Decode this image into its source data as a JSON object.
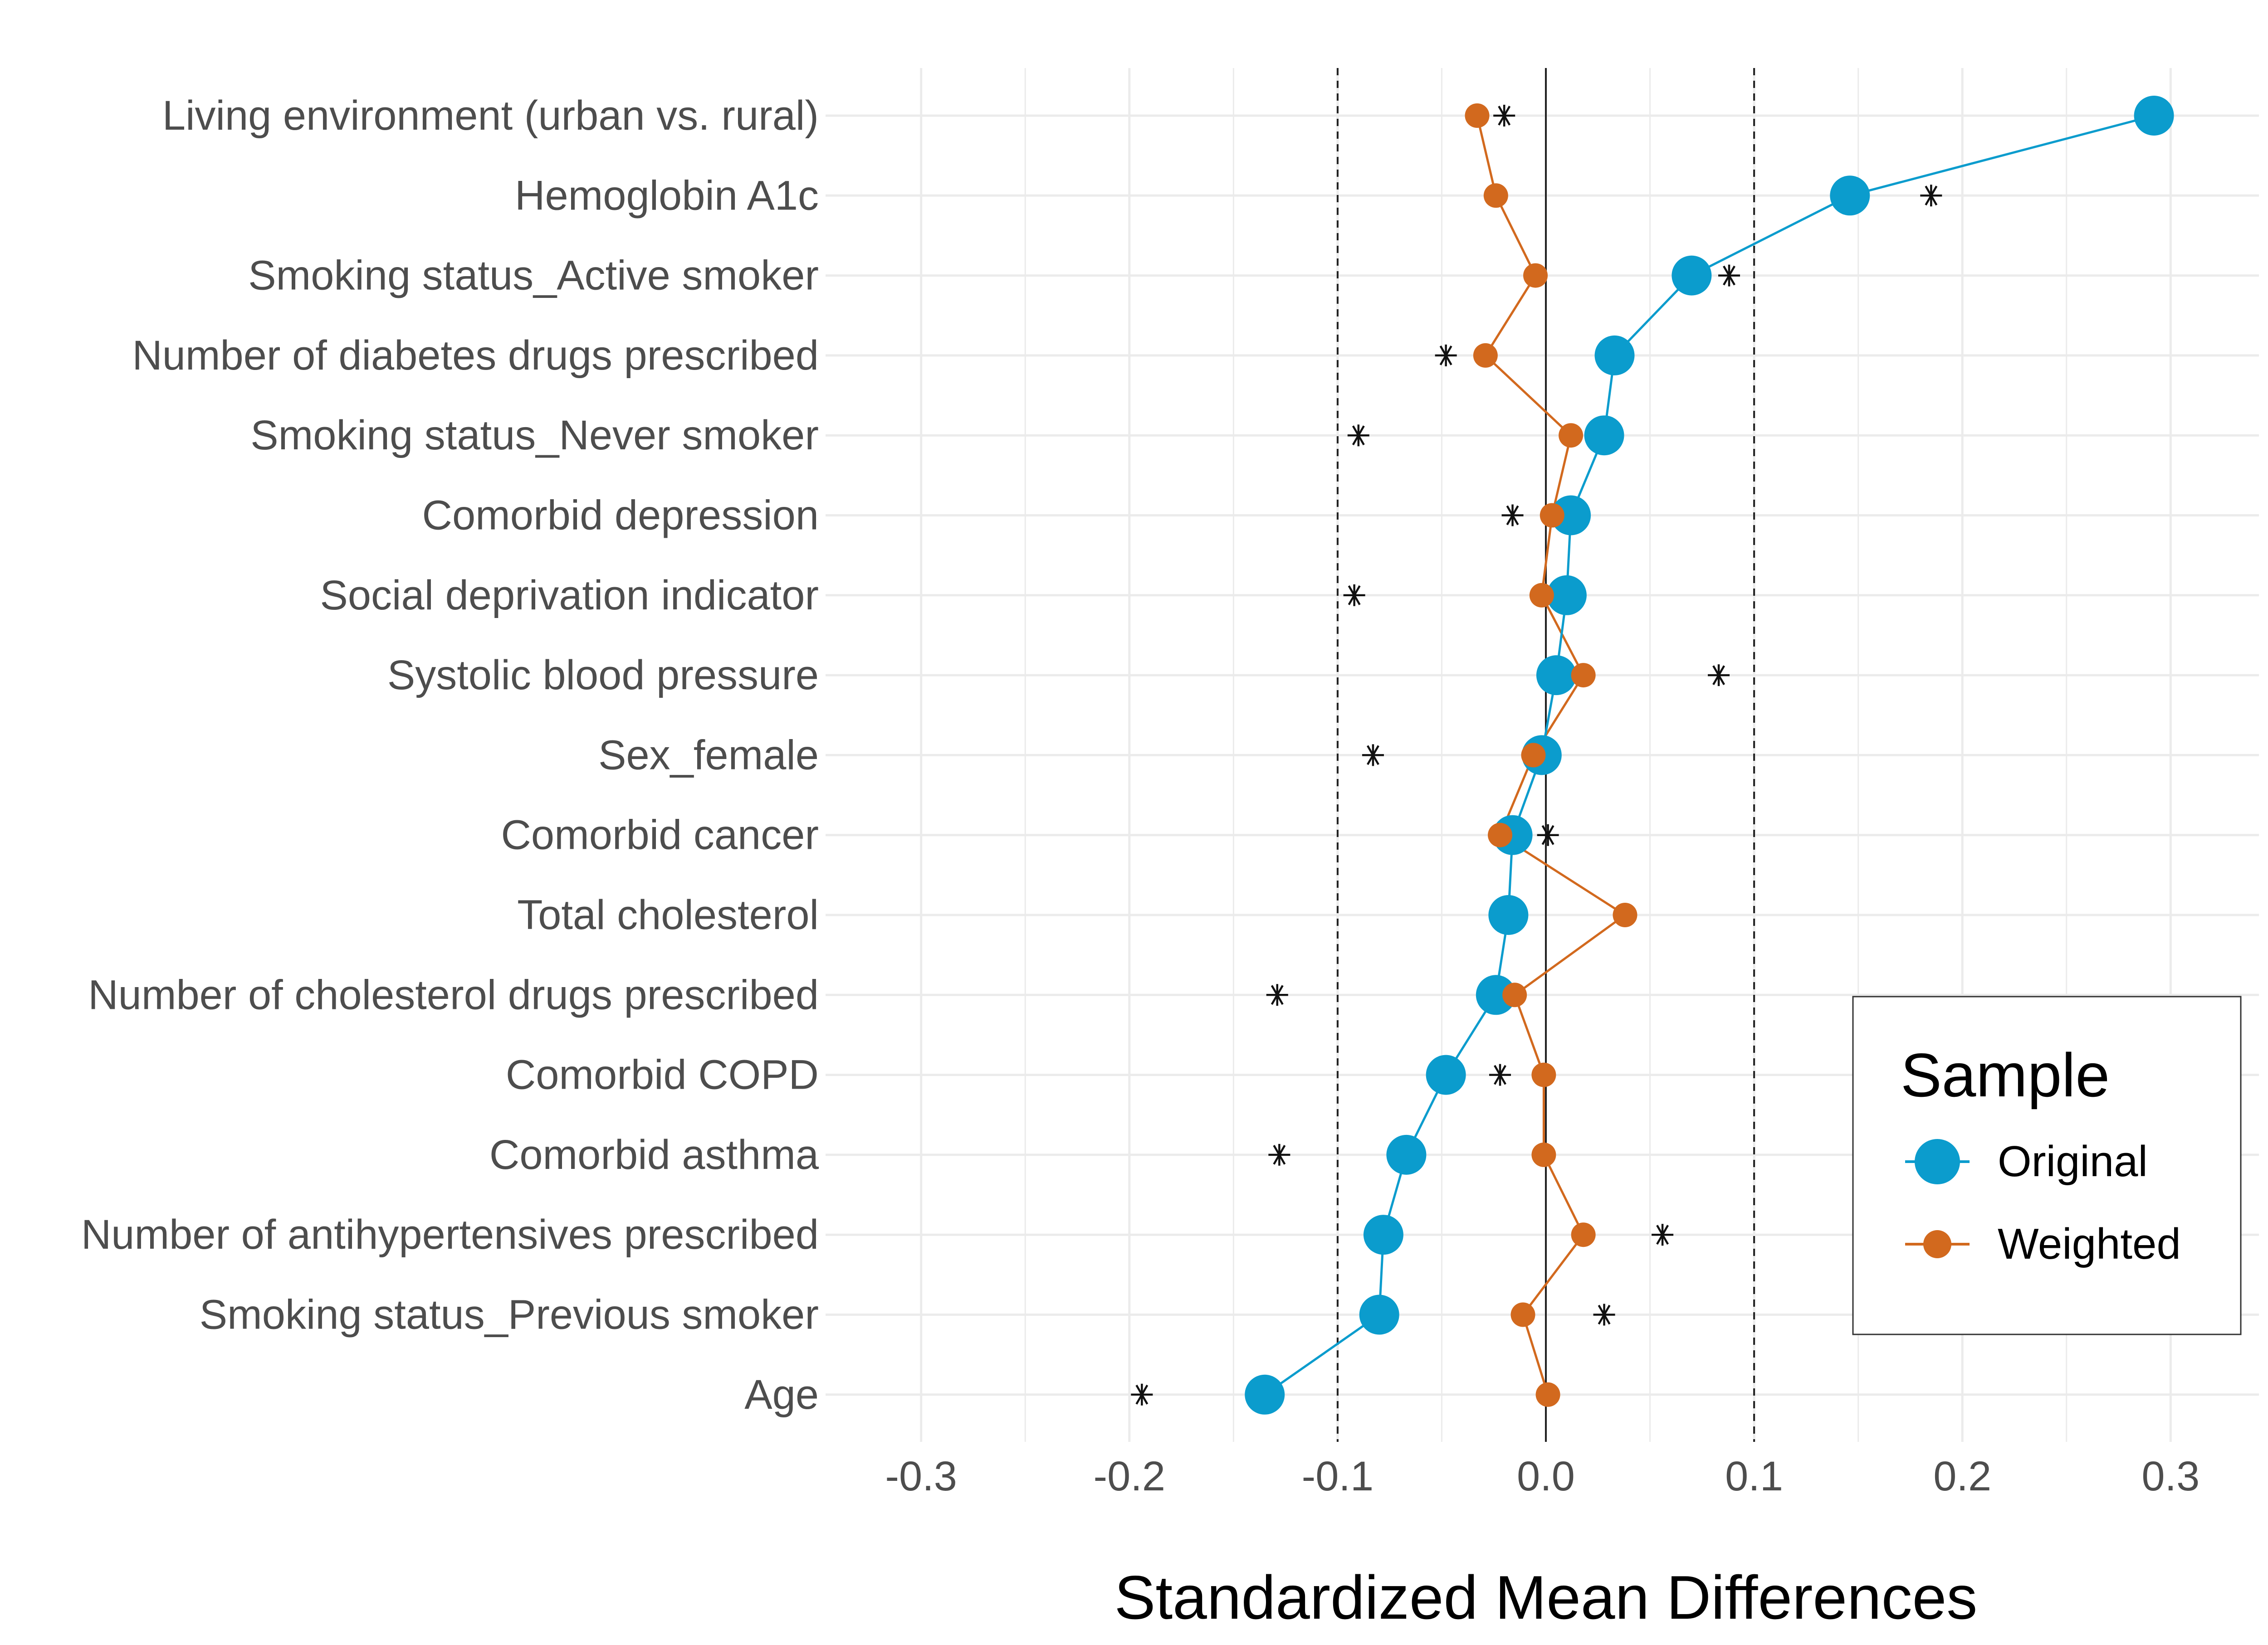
{
  "chart_data": {
    "type": "scatter",
    "title": "",
    "xlabel": "Standardized Mean Differences",
    "ylabel": "",
    "xlim": [
      -0.335,
      0.34
    ],
    "x_ticks": [
      {
        "value": -0.3,
        "label": "-0.3"
      },
      {
        "value": -0.2,
        "label": "-0.2"
      },
      {
        "value": -0.1,
        "label": "-0.1"
      },
      {
        "value": 0.0,
        "label": "0.0"
      },
      {
        "value": 0.1,
        "label": "0.1"
      },
      {
        "value": 0.2,
        "label": "0.2"
      },
      {
        "value": 0.3,
        "label": "0.3"
      }
    ],
    "reference_lines": {
      "solid": 0.0,
      "dashed": [
        -0.1,
        0.1
      ]
    },
    "grid": true,
    "categories": [
      "Living environment (urban vs. rural)",
      "Hemoglobin A1c",
      "Smoking status_Active smoker",
      "Number of diabetes drugs prescribed",
      "Smoking status_Never smoker",
      "Comorbid depression",
      "Social deprivation indicator",
      "Systolic blood pressure",
      "Sex_female",
      "Comorbid cancer",
      "Total cholesterol",
      "Number of cholesterol drugs prescribed",
      "Comorbid COPD",
      "Comorbid asthma",
      "Number of antihypertensives prescribed",
      "Smoking status_Previous smoker",
      "Age"
    ],
    "series": [
      {
        "name": "Original",
        "color": "#0b9ccd",
        "marker": "large-circle",
        "values": [
          0.292,
          0.146,
          0.07,
          0.033,
          0.028,
          0.012,
          0.01,
          0.005,
          -0.002,
          -0.016,
          -0.018,
          -0.024,
          -0.048,
          -0.067,
          -0.078,
          -0.08,
          -0.135
        ]
      },
      {
        "name": "Weighted",
        "color": "#d2691e",
        "marker": "small-circle",
        "values": [
          -0.033,
          -0.024,
          -0.005,
          -0.029,
          0.012,
          0.003,
          -0.002,
          0.018,
          -0.006,
          -0.022,
          0.038,
          -0.015,
          -0.001,
          -0.001,
          0.018,
          -0.011,
          0.001
        ]
      },
      {
        "name": "",
        "color": "#111111",
        "marker": "asterisk",
        "values": [
          -0.02,
          0.185,
          0.088,
          -0.048,
          -0.09,
          -0.016,
          -0.092,
          0.083,
          -0.083,
          0.001,
          null,
          -0.129,
          -0.022,
          -0.128,
          0.056,
          0.028,
          -0.194
        ]
      }
    ],
    "legend": {
      "title": "Sample",
      "position": "bottom-right",
      "entries": [
        "Original",
        "Weighted"
      ]
    }
  }
}
